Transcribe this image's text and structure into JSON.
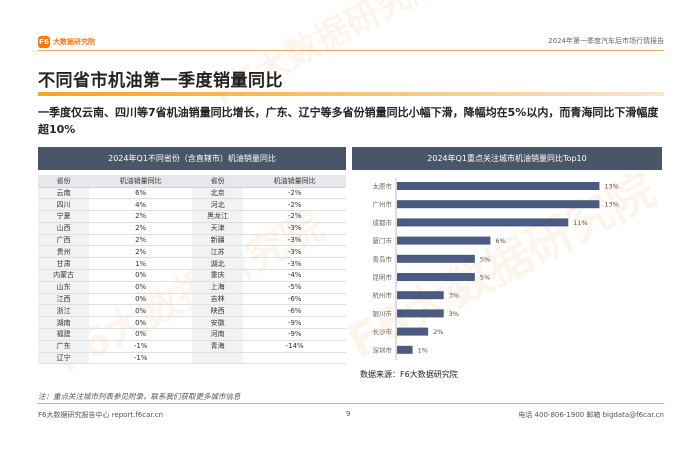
{
  "header": {
    "logo_text": "大数据研究院",
    "logo_mark": "F6",
    "report_name": "2024年第一季度汽车后市场行情报告"
  },
  "watermark_text": "F6大数据研究院",
  "page_title": "不同省市机油第一季度销量同比",
  "summary": "一季度仅云南、四川等7省机油销量同比增长，广东、辽宁等多省份销量同比小幅下滑，降幅均在5%以内，而青海同比下滑幅度超10%",
  "colors": {
    "accent": "#f07d1a",
    "panel_header": "#495668",
    "bar": "#4a5a80",
    "negative": "#2e9d3a"
  },
  "chart_data": [
    {
      "type": "table",
      "title": "2024年Q1不同省份（含直辖市）机油销量同比",
      "columns": [
        "省份",
        "机油销量同比",
        "省份",
        "机油销量同比"
      ],
      "rows": [
        [
          "云南",
          "6%",
          "北京",
          "-2%"
        ],
        [
          "四川",
          "4%",
          "河北",
          "-2%"
        ],
        [
          "宁夏",
          "2%",
          "黑龙江",
          "-2%"
        ],
        [
          "山西",
          "2%",
          "天津",
          "-3%"
        ],
        [
          "广西",
          "2%",
          "新疆",
          "-3%"
        ],
        [
          "贵州",
          "2%",
          "江苏",
          "-3%"
        ],
        [
          "甘肃",
          "1%",
          "湖北",
          "-3%"
        ],
        [
          "内蒙古",
          "0%",
          "重庆",
          "-4%"
        ],
        [
          "山东",
          "0%",
          "上海",
          "-5%"
        ],
        [
          "江西",
          "0%",
          "吉林",
          "-6%"
        ],
        [
          "浙江",
          "0%",
          "陕西",
          "-6%"
        ],
        [
          "湖南",
          "0%",
          "安徽",
          "-9%"
        ],
        [
          "福建",
          "0%",
          "河南",
          "-9%"
        ],
        [
          "广东",
          "-1%",
          "青海",
          "-14%"
        ],
        [
          "辽宁",
          "-1%",
          "",
          ""
        ]
      ]
    },
    {
      "type": "bar",
      "orientation": "horizontal",
      "title": "2024年Q1重点关注城市机油销量同比Top10",
      "categories": [
        "太原市",
        "广州市",
        "成都市",
        "厦门市",
        "青岛市",
        "昆明市",
        "杭州市",
        "银川市",
        "长沙市",
        "深圳市"
      ],
      "values": [
        13,
        13,
        11,
        6,
        5,
        5,
        3,
        3,
        2,
        1
      ],
      "labels": [
        "13%",
        "13%",
        "11%",
        "6%",
        "5%",
        "5%",
        "3%",
        "3%",
        "2%",
        "1%"
      ],
      "xlim": [
        0,
        14
      ],
      "grid": false
    }
  ],
  "source": "数据来源：F6大数据研究院",
  "note": "注：重点关注城市列表参见附录，联系我们获取更多城市信息",
  "footer": {
    "left": "F6大数据研究报告中心 report.f6car.cn",
    "page": "9",
    "right": "电话 400-806-1900  邮箱 bigdata@f6car.cn"
  }
}
